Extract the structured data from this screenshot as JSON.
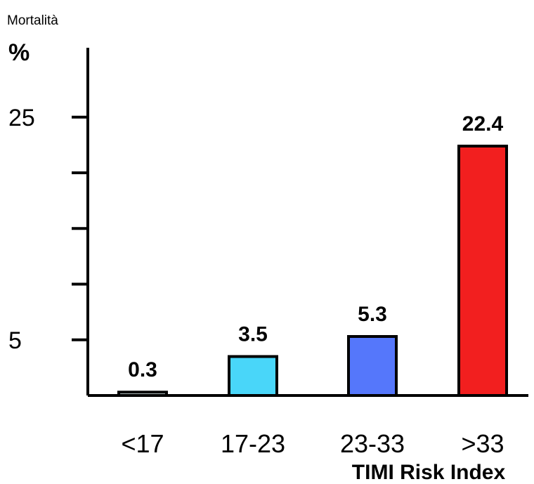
{
  "chart_data": {
    "type": "bar",
    "ylabel_top": "Mortalità",
    "ylabel_unit": "%",
    "xlabel": "TIMI Risk Index",
    "categories": [
      "<17",
      "17-23",
      "23-33",
      ">33"
    ],
    "values": [
      0.3,
      3.5,
      5.3,
      22.4
    ],
    "value_labels": [
      "0.3",
      "3.5",
      "5.3",
      "22.4"
    ],
    "colors": [
      "#e6f7f7",
      "#49d6f9",
      "#5577fb",
      "#f21f1f"
    ],
    "ylim": [
      0,
      25
    ],
    "y_tick_values": [
      5,
      10,
      15,
      20,
      25
    ],
    "y_tick_labels": [
      {
        "value": 5,
        "label": "5"
      },
      {
        "value": 25,
        "label": "25"
      }
    ],
    "grid": false,
    "legend": "none"
  }
}
